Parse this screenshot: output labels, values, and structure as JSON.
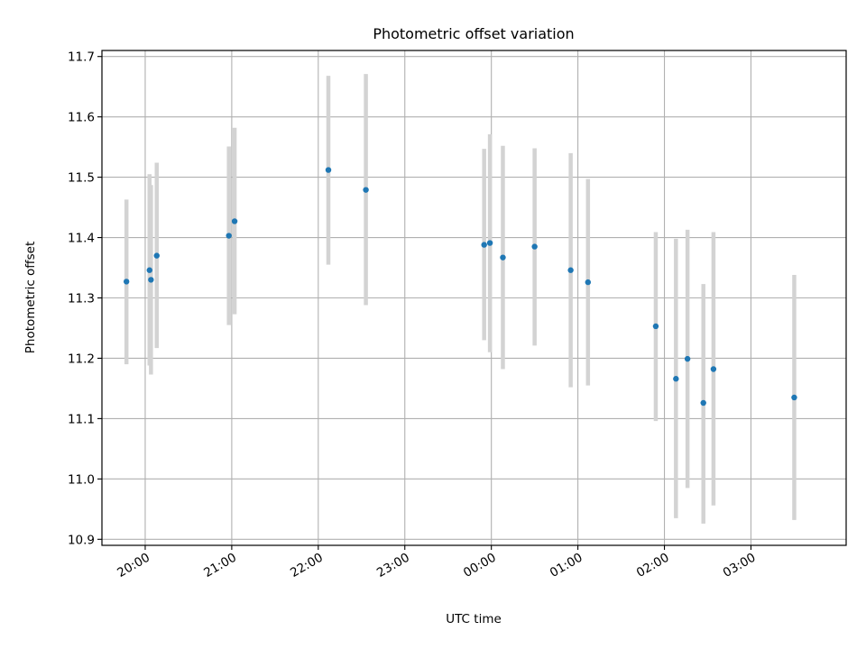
{
  "chart_data": {
    "type": "scatter",
    "title": "Photometric offset variation",
    "xlabel": "UTC time",
    "ylabel": "Photometric offset",
    "xlim": [
      "19:30",
      "04:06"
    ],
    "ylim": [
      10.89,
      11.71
    ],
    "x_ticks": [
      "20:00",
      "21:00",
      "22:00",
      "23:00",
      "00:00",
      "01:00",
      "02:00",
      "03:00"
    ],
    "y_ticks": [
      "10.9",
      "11.0",
      "11.1",
      "11.2",
      "11.3",
      "11.4",
      "11.5",
      "11.6",
      "11.7"
    ],
    "grid": true,
    "colors": {
      "point": "#1f77b4",
      "errorbar": "#d3d3d3",
      "grid": "#b0b0b0"
    },
    "points": [
      {
        "x": "19:47",
        "y": 11.327,
        "ylow": 11.19,
        "yhigh": 11.463
      },
      {
        "x": "20:03",
        "y": 11.346,
        "ylow": 11.188,
        "yhigh": 11.505
      },
      {
        "x": "20:04",
        "y": 11.33,
        "ylow": 11.173,
        "yhigh": 11.487
      },
      {
        "x": "20:08",
        "y": 11.37,
        "ylow": 11.217,
        "yhigh": 11.524
      },
      {
        "x": "20:58",
        "y": 11.403,
        "ylow": 11.255,
        "yhigh": 11.551
      },
      {
        "x": "21:02",
        "y": 11.427,
        "ylow": 11.273,
        "yhigh": 11.582
      },
      {
        "x": "22:07",
        "y": 11.512,
        "ylow": 11.355,
        "yhigh": 11.668
      },
      {
        "x": "22:33",
        "y": 11.479,
        "ylow": 11.288,
        "yhigh": 11.671
      },
      {
        "x": "23:55",
        "y": 11.388,
        "ylow": 11.23,
        "yhigh": 11.547
      },
      {
        "x": "23:59",
        "y": 11.391,
        "ylow": 11.21,
        "yhigh": 11.571
      },
      {
        "x": "00:08",
        "y": 11.367,
        "ylow": 11.182,
        "yhigh": 11.552
      },
      {
        "x": "00:30",
        "y": 11.385,
        "ylow": 11.221,
        "yhigh": 11.548
      },
      {
        "x": "00:55",
        "y": 11.346,
        "ylow": 11.152,
        "yhigh": 11.54
      },
      {
        "x": "01:07",
        "y": 11.326,
        "ylow": 11.155,
        "yhigh": 11.497
      },
      {
        "x": "01:54",
        "y": 11.253,
        "ylow": 11.096,
        "yhigh": 11.409
      },
      {
        "x": "02:08",
        "y": 11.166,
        "ylow": 10.935,
        "yhigh": 11.398
      },
      {
        "x": "02:16",
        "y": 11.199,
        "ylow": 10.985,
        "yhigh": 11.413
      },
      {
        "x": "02:27",
        "y": 11.126,
        "ylow": 10.926,
        "yhigh": 11.323
      },
      {
        "x": "02:34",
        "y": 11.182,
        "ylow": 10.956,
        "yhigh": 11.409
      },
      {
        "x": "03:30",
        "y": 11.135,
        "ylow": 10.932,
        "yhigh": 11.338
      }
    ]
  }
}
